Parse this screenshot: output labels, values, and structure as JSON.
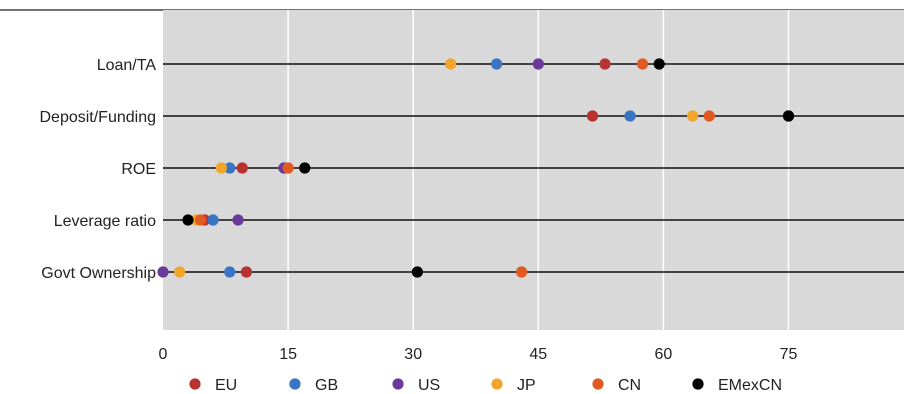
{
  "chart_data": {
    "type": "scatter",
    "title": "",
    "xlabel": "",
    "ylabel": "",
    "xlim": [
      0,
      89
    ],
    "x_ticks": [
      "0",
      "15",
      "30",
      "45",
      "60",
      "75"
    ],
    "grid": "vertical",
    "legend_position": "bottom",
    "categories": [
      "Loan/TA",
      "Deposit/Funding",
      "ROE",
      "Leverage ratio",
      "Govt Ownership"
    ],
    "series": [
      {
        "name": "EU",
        "color": "#b83232",
        "values": [
          53.0,
          51.5,
          9.5,
          5.0,
          10.0
        ]
      },
      {
        "name": "GB",
        "color": "#3a74c4",
        "values": [
          40.0,
          56.0,
          8.0,
          6.0,
          8.0
        ]
      },
      {
        "name": "US",
        "color": "#6a3a9a",
        "values": [
          45.0,
          75.0,
          14.5,
          9.0,
          0.0
        ]
      },
      {
        "name": "JP",
        "color": "#f2a52b",
        "values": [
          34.5,
          63.5,
          7.0,
          4.0,
          2.0
        ]
      },
      {
        "name": "CN",
        "color": "#e05a21",
        "values": [
          57.5,
          65.5,
          15.0,
          4.5,
          43.0
        ]
      },
      {
        "name": "EMexCN",
        "color": "#000000",
        "values": [
          59.5,
          75.0,
          17.0,
          3.0,
          30.5
        ]
      }
    ]
  }
}
